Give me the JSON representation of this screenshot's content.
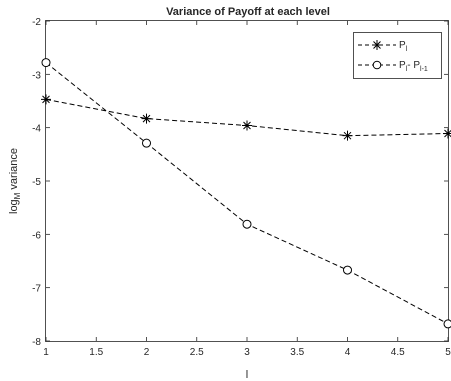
{
  "chart_data": {
    "type": "line",
    "title": "Variance of Payoff at each level",
    "xlabel": "l",
    "ylabel": {
      "main": "log",
      "sub": "M",
      "rest": " variance"
    },
    "xlim": [
      1,
      5
    ],
    "ylim": [
      -8,
      -2
    ],
    "x_ticks": [
      "1",
      "1.5",
      "2",
      "2.5",
      "3",
      "3.5",
      "4",
      "4.5",
      "5"
    ],
    "y_ticks": [
      "-8",
      "-7",
      "-6",
      "-5",
      "-4",
      "-3",
      "-2"
    ],
    "grid": false,
    "legend_position": "top-right",
    "x": [
      1,
      2,
      3,
      4,
      5
    ],
    "series": [
      {
        "name": {
          "main": "P",
          "sub": "l",
          "rest": ""
        },
        "marker": "x",
        "line": "dashed",
        "color": "#000000",
        "values": [
          -3.47,
          -3.83,
          -3.96,
          -4.15,
          -4.11
        ]
      },
      {
        "name": {
          "main": "P",
          "sub": "l",
          "rest": "- P",
          "sub2": "l-1"
        },
        "marker": "o",
        "line": "dashed",
        "color": "#000000",
        "values": [
          -2.78,
          -4.29,
          -5.81,
          -6.67,
          -7.68
        ]
      }
    ]
  }
}
